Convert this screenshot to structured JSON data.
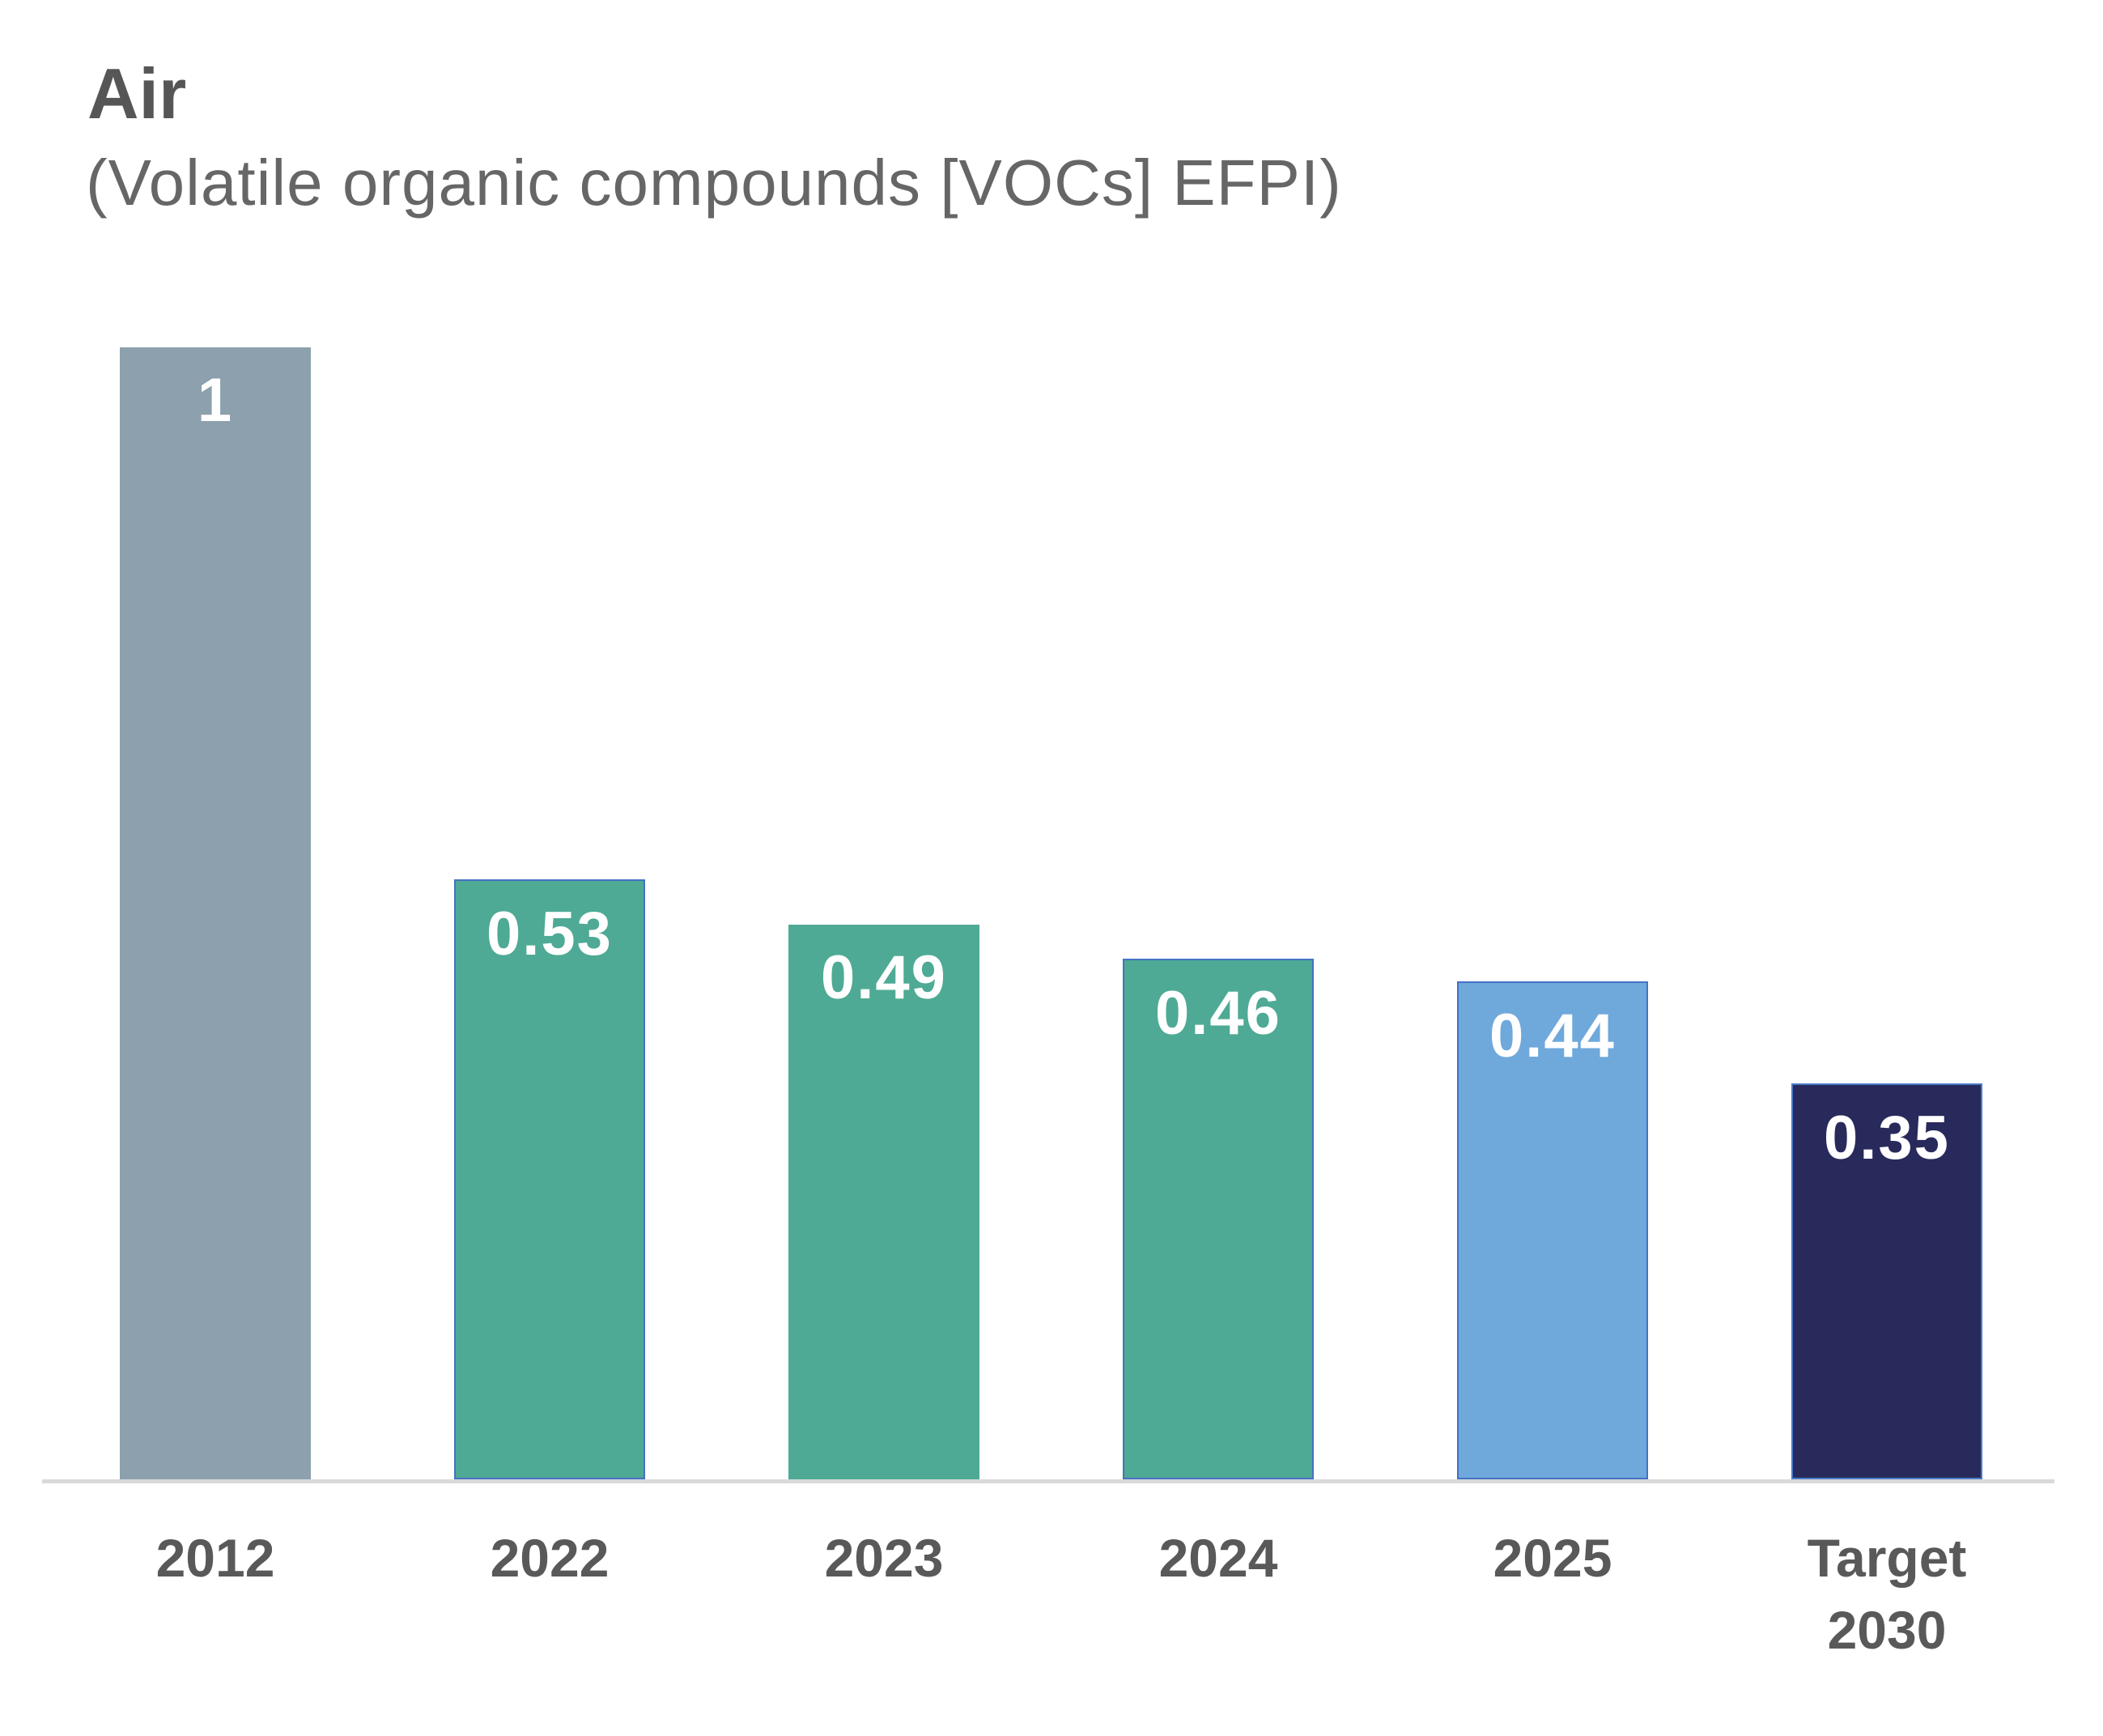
{
  "header": {
    "title": "Air",
    "subtitle": "(Volatile organic compounds [VOCs] EFPI)"
  },
  "chart_data": {
    "type": "bar",
    "title": "Air",
    "subtitle": "(Volatile organic compounds [VOCs] EFPI)",
    "categories": [
      "2012",
      "2022",
      "2023",
      "2024",
      "2025",
      "Target 2030"
    ],
    "values": [
      1,
      0.53,
      0.49,
      0.46,
      0.44,
      0.35
    ],
    "data_labels": [
      "1",
      "0.53",
      "0.49",
      "0.46",
      "0.44",
      "0.35"
    ],
    "xlabel": "",
    "ylabel": "",
    "ylim": [
      0,
      1.05
    ],
    "grid": false,
    "legend": false,
    "bars": [
      {
        "category": "2012",
        "value": 1,
        "display": "1",
        "fill": "#8CA0AD",
        "border": null
      },
      {
        "category": "2022",
        "value": 0.53,
        "display": "0.53",
        "fill": "#4EAA94",
        "border": "#4472C4"
      },
      {
        "category": "2023",
        "value": 0.49,
        "display": "0.49",
        "fill": "#4EAA94",
        "border": null
      },
      {
        "category": "2024",
        "value": 0.46,
        "display": "0.46",
        "fill": "#4EAA94",
        "border": "#4472C4"
      },
      {
        "category": "2025",
        "value": 0.44,
        "display": "0.44",
        "fill": "#6FA8DB",
        "border": "#4472C4"
      },
      {
        "category": "Target 2030",
        "value": 0.35,
        "display": "0.35",
        "fill": "#282A5C",
        "border": "#4C7BC8"
      }
    ],
    "value_label_color": "#FFFFFF",
    "axis_line_color": "#D9D9D9",
    "tick_label_color": "#595959"
  }
}
